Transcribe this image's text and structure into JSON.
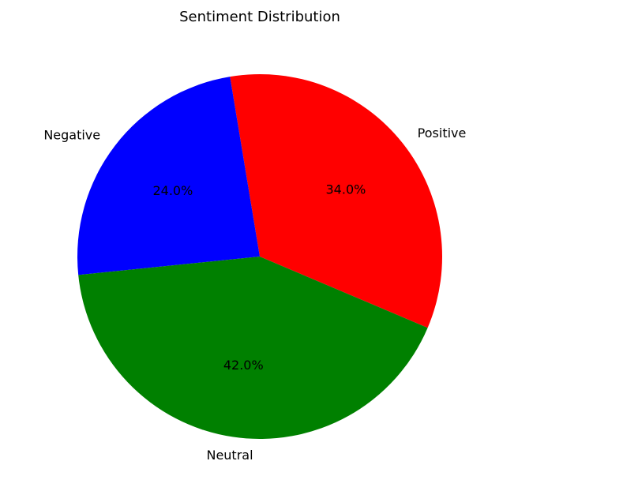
{
  "chart_data": {
    "type": "pie",
    "title": "Sentiment Distribution",
    "categories": [
      "Positive",
      "Negative",
      "Neutral"
    ],
    "values": [
      34.0,
      24.0,
      42.0
    ],
    "value_labels": [
      "34.0%",
      "24.0%",
      "42.0%"
    ],
    "colors": [
      "#ff0000",
      "#0000ff",
      "#008000"
    ],
    "start_angle_deg": -23,
    "direction": "counterclockwise",
    "legend": "none"
  }
}
